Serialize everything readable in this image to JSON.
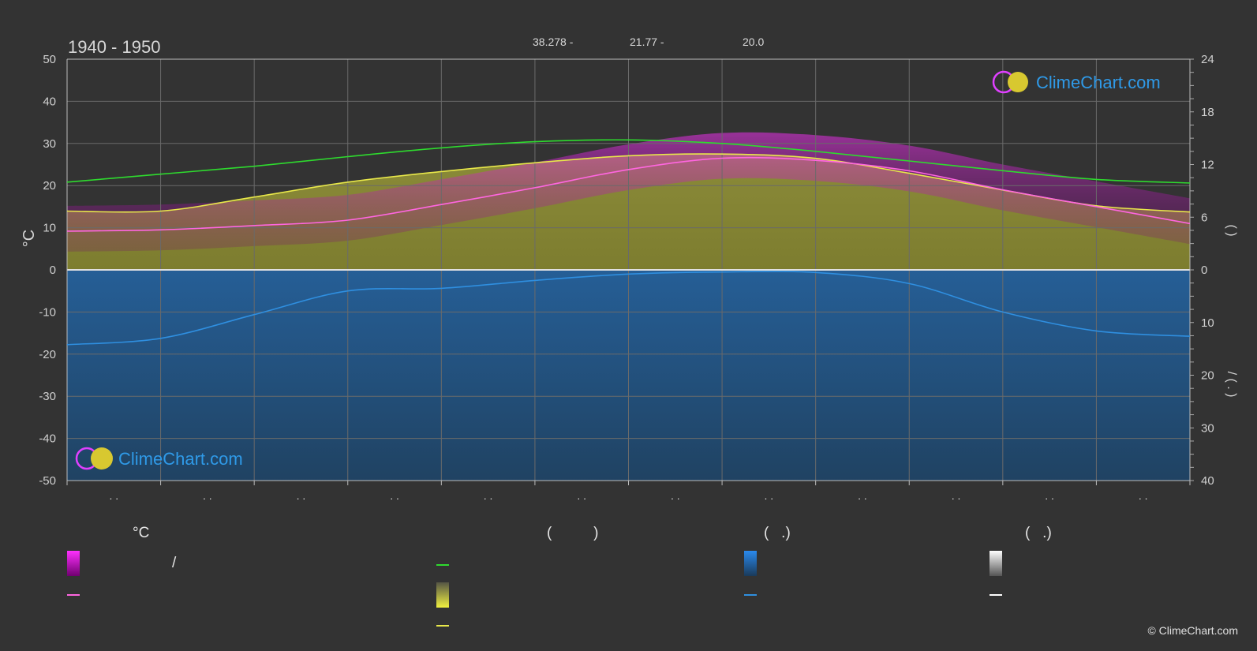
{
  "chart_data": {
    "type": "area",
    "title": "1940 - 1950",
    "header_values": [
      "38.278 -",
      "21.77 -",
      "20.0"
    ],
    "y_left_label": "°C",
    "y_left_ticks": [
      50,
      40,
      30,
      20,
      10,
      0,
      -10,
      -20,
      -30,
      -40,
      -50
    ],
    "y_left_range": [
      -50,
      50
    ],
    "y_right_upper_ticks": [
      24,
      18,
      12,
      6,
      0
    ],
    "y_right_upper_range": [
      0,
      24
    ],
    "y_right_lower_ticks": [
      0,
      10,
      20,
      30,
      40
    ],
    "y_right_lower_range": [
      0,
      40
    ],
    "y_right_upper_label": "(   )",
    "y_right_lower_label": "/   (   .   )",
    "month_tick_labels": [
      ". .",
      ". .",
      ". .",
      ". .",
      ". .",
      ". .",
      ". .",
      ". .",
      ". .",
      ". .",
      ". .",
      ". ."
    ],
    "months": 12,
    "grid": true,
    "series": [
      {
        "key": "daylight",
        "axis": "right_upper",
        "color": "#2edb2e",
        "values": [
          10.0,
          10.9,
          11.8,
          12.9,
          13.9,
          14.6,
          14.8,
          14.4,
          13.5,
          12.4,
          11.3,
          10.3,
          9.9
        ]
      },
      {
        "key": "sunshine",
        "axis": "right_upper",
        "color": "#e8e84a",
        "values": [
          6.7,
          6.7,
          8.3,
          10.0,
          11.2,
          12.2,
          13.0,
          13.2,
          12.7,
          11.0,
          9.1,
          7.3,
          6.6
        ]
      },
      {
        "key": "mean_temperature",
        "axis": "left",
        "color": "#ff66e0",
        "values": [
          9.2,
          9.5,
          10.5,
          11.8,
          15.5,
          19.5,
          23.8,
          26.5,
          26.0,
          23.5,
          19.0,
          15.0,
          11.0
        ]
      },
      {
        "key": "precipitation",
        "axis": "right_lower",
        "color": "#2f8fe0",
        "values": [
          14.2,
          13.0,
          8.5,
          4.0,
          3.5,
          2.0,
          0.8,
          0.4,
          0.5,
          2.6,
          8.0,
          11.6,
          12.6
        ]
      }
    ],
    "legend": {
      "col1_header": "°C",
      "col1_item1": "/",
      "col2_header": "(          )",
      "col3_header": "(   .)",
      "col4_header": "(   .)"
    },
    "colors": {
      "background": "#333333",
      "temp_band": "#e020d8",
      "sun_band": "#c8c832",
      "precip_band": "#2a6eaa",
      "snow": "#ffffff",
      "axis_text": "#d0d0d0",
      "brand": "#2f9ae8"
    }
  },
  "brand": {
    "name": "ClimeChart.com"
  },
  "copyright": "© ClimeChart.com"
}
